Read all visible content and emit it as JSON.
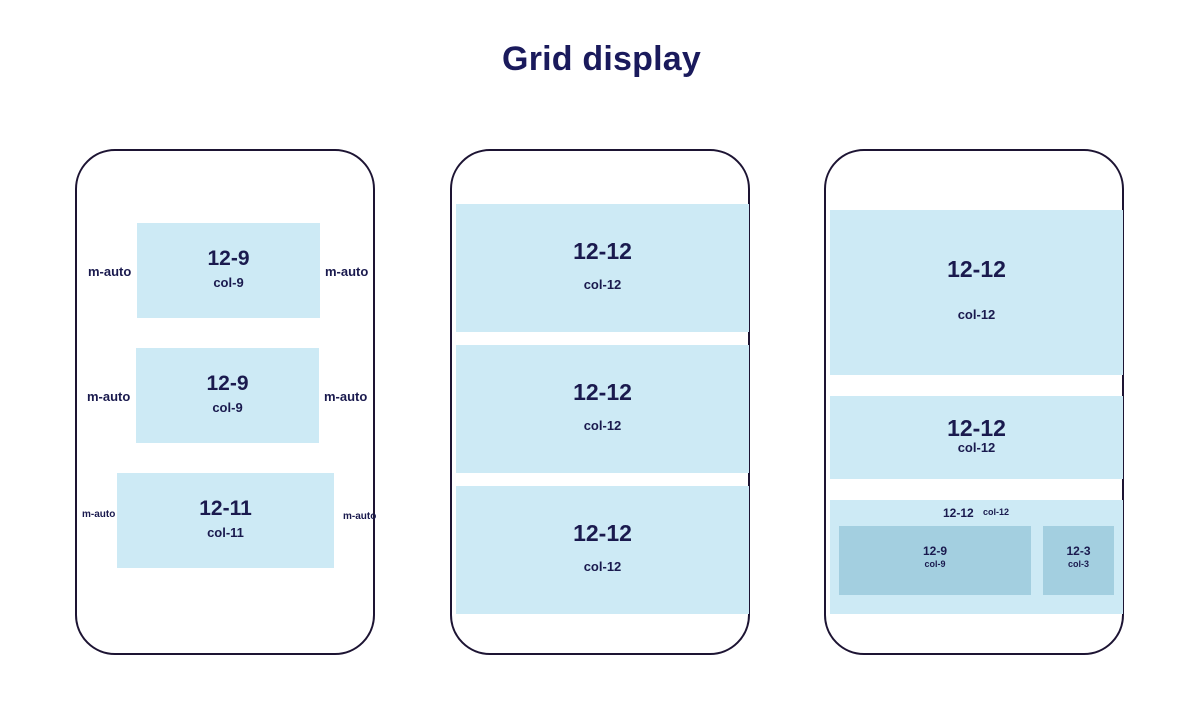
{
  "title": "Grid display",
  "phone1": {
    "rows": [
      {
        "label": "12-9",
        "col": "col-9",
        "margin_left": "m-auto",
        "margin_right": "m-auto"
      },
      {
        "label": "12-9",
        "col": "col-9",
        "margin_left": "m-auto",
        "margin_right": "m-auto"
      },
      {
        "label": "12-11",
        "col": "col-11",
        "margin_left": "m-auto",
        "margin_right": "m-auto"
      }
    ]
  },
  "phone2": {
    "rows": [
      {
        "label": "12-12",
        "col": "col-12"
      },
      {
        "label": "12-12",
        "col": "col-12"
      },
      {
        "label": "12-12",
        "col": "col-12"
      }
    ]
  },
  "phone3": {
    "rows": [
      {
        "label": "12-12",
        "col": "col-12"
      },
      {
        "label": "12-12",
        "col": "col-12"
      },
      {
        "label": "12-12",
        "col": "col-12",
        "children": [
          {
            "label": "12-9",
            "col": "col-9"
          },
          {
            "label": "12-3",
            "col": "col-3"
          }
        ]
      }
    ]
  },
  "colors": {
    "box_fill": "#cdeaf5",
    "nested_fill": "#a3cfe0",
    "text": "#1a1a4e",
    "frame": "#1d1433"
  }
}
